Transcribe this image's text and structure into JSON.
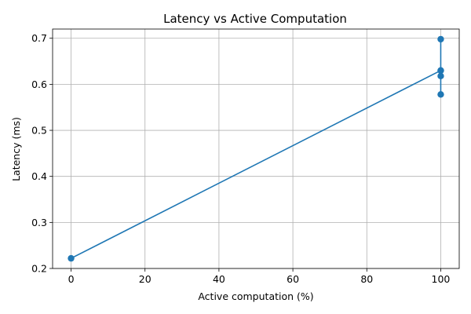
{
  "chart_data": {
    "type": "line",
    "title": "Latency vs Active Computation",
    "xlabel": "Active computation (%)",
    "ylabel": "Latency (ms)",
    "xlim": [
      -5,
      105
    ],
    "ylim": [
      0.2,
      0.72
    ],
    "xticks": [
      0,
      20,
      40,
      60,
      80,
      100
    ],
    "yticks": [
      0.2,
      0.3,
      0.4,
      0.5,
      0.6,
      0.7
    ],
    "ytick_labels": [
      "0.2",
      "0.3",
      "0.4",
      "0.5",
      "0.6",
      "0.7"
    ],
    "grid": true,
    "color": "#1f77b4",
    "series": [
      {
        "x": [
          0,
          100,
          100,
          100,
          100,
          100
        ],
        "y": [
          0.222,
          0.63,
          0.578,
          0.618,
          0.698,
          0.63
        ]
      }
    ]
  }
}
